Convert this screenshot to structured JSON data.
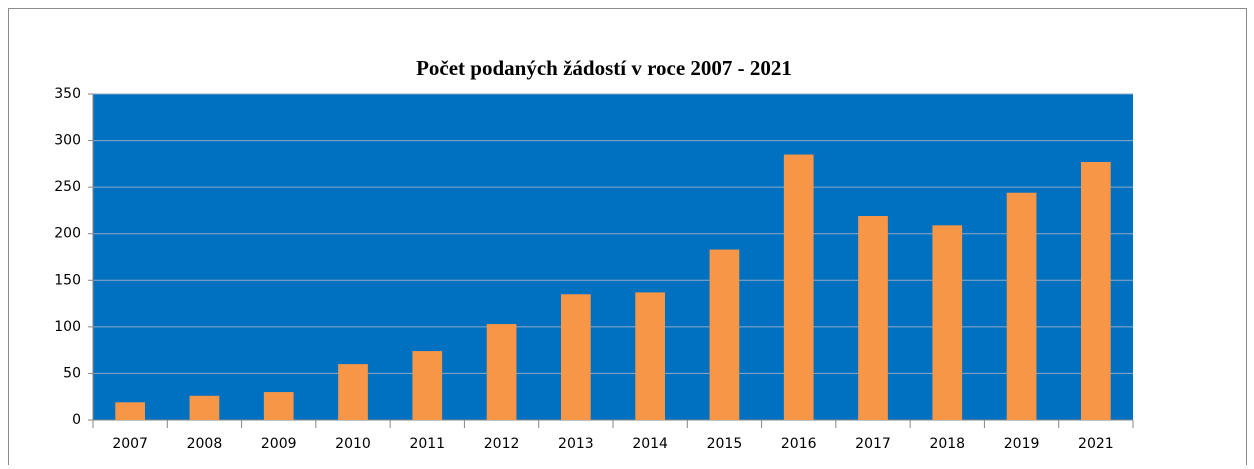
{
  "chart_data": {
    "type": "bar",
    "title": "Počet podaných žádostí v roce 2007 - 2021",
    "categories": [
      "2007",
      "2008",
      "2009",
      "2010",
      "2011",
      "2012",
      "2013",
      "2014",
      "2015",
      "2016",
      "2017",
      "2018",
      "2019",
      "2021"
    ],
    "values": [
      19,
      26,
      30,
      60,
      74,
      103,
      135,
      137,
      183,
      285,
      219,
      209,
      244,
      277
    ],
    "color": "#f79646",
    "plot_background": "#0070c0",
    "ylim": [
      0,
      350
    ],
    "yticks": [
      0,
      50,
      100,
      150,
      200,
      250,
      300,
      350
    ],
    "grid": true
  }
}
